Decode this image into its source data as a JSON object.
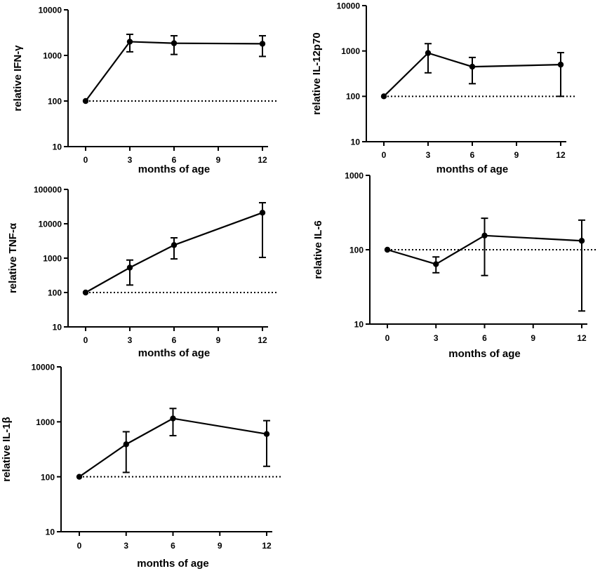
{
  "chart_data": [
    {
      "type": "line",
      "xlabel": "months of age",
      "ylabel": "relative IFN-γ",
      "yscale": "log",
      "ylim": [
        10,
        10000
      ],
      "xlim": [
        0,
        12
      ],
      "xticks": [
        "0",
        "3",
        "6",
        "9",
        "12"
      ],
      "yticks": [
        "10",
        "100",
        "1000",
        "10000"
      ],
      "reference_line": 100,
      "series": [
        {
          "name": "IFN-γ",
          "x": [
            0,
            3,
            6,
            12
          ],
          "values": [
            100,
            2000,
            1850,
            1800
          ],
          "err_low": [
            null,
            1200,
            1050,
            950
          ],
          "err_high": [
            null,
            2900,
            2700,
            2700
          ]
        }
      ]
    },
    {
      "type": "line",
      "xlabel": "months of age",
      "ylabel": "relative IL-12p70",
      "yscale": "log",
      "ylim": [
        10,
        10000
      ],
      "xlim": [
        0,
        12
      ],
      "xticks": [
        "0",
        "3",
        "6",
        "9",
        "12"
      ],
      "yticks": [
        "10",
        "100",
        "1000",
        "10000"
      ],
      "reference_line": 100,
      "series": [
        {
          "name": "IL-12p70",
          "x": [
            0,
            3,
            6,
            12
          ],
          "values": [
            100,
            900,
            450,
            500
          ],
          "err_low": [
            null,
            330,
            190,
            100
          ],
          "err_high": [
            null,
            1450,
            720,
            920
          ]
        }
      ]
    },
    {
      "type": "line",
      "xlabel": "months of age",
      "ylabel": "relative TNF-α",
      "yscale": "log",
      "ylim": [
        10,
        100000
      ],
      "xlim": [
        0,
        12
      ],
      "xticks": [
        "0",
        "3",
        "6",
        "9",
        "12"
      ],
      "yticks": [
        "10",
        "100",
        "1000",
        "10000",
        "100000"
      ],
      "reference_line": 100,
      "series": [
        {
          "name": "TNF-α",
          "x": [
            0,
            3,
            6,
            12
          ],
          "values": [
            100,
            530,
            2400,
            21000
          ],
          "err_low": [
            null,
            165,
            950,
            1050
          ],
          "err_high": [
            null,
            880,
            3900,
            41000
          ]
        }
      ]
    },
    {
      "type": "line",
      "xlabel": "months of age",
      "ylabel": "relative IL-6",
      "yscale": "log",
      "ylim": [
        10,
        1000
      ],
      "xlim": [
        0,
        12
      ],
      "xticks": [
        "0",
        "3",
        "6",
        "9",
        "12"
      ],
      "yticks": [
        "10",
        "100",
        "1000"
      ],
      "reference_line": 100,
      "series": [
        {
          "name": "IL-6",
          "x": [
            0,
            3,
            6,
            12
          ],
          "values": [
            100,
            64,
            155,
            132
          ],
          "err_low": [
            null,
            49,
            45,
            15
          ],
          "err_high": [
            null,
            80,
            265,
            250
          ]
        }
      ]
    },
    {
      "type": "line",
      "xlabel": "months of age",
      "ylabel": "relative IL-1β",
      "yscale": "log",
      "ylim": [
        10,
        10000
      ],
      "xlim": [
        0,
        12
      ],
      "xticks": [
        "0",
        "3",
        "6",
        "9",
        "12"
      ],
      "yticks": [
        "10",
        "100",
        "1000",
        "10000"
      ],
      "reference_line": 100,
      "series": [
        {
          "name": "IL-1β",
          "x": [
            0,
            3,
            6,
            12
          ],
          "values": [
            100,
            390,
            1150,
            600
          ],
          "err_low": [
            null,
            120,
            560,
            155
          ],
          "err_high": [
            null,
            660,
            1750,
            1050
          ]
        }
      ]
    }
  ]
}
